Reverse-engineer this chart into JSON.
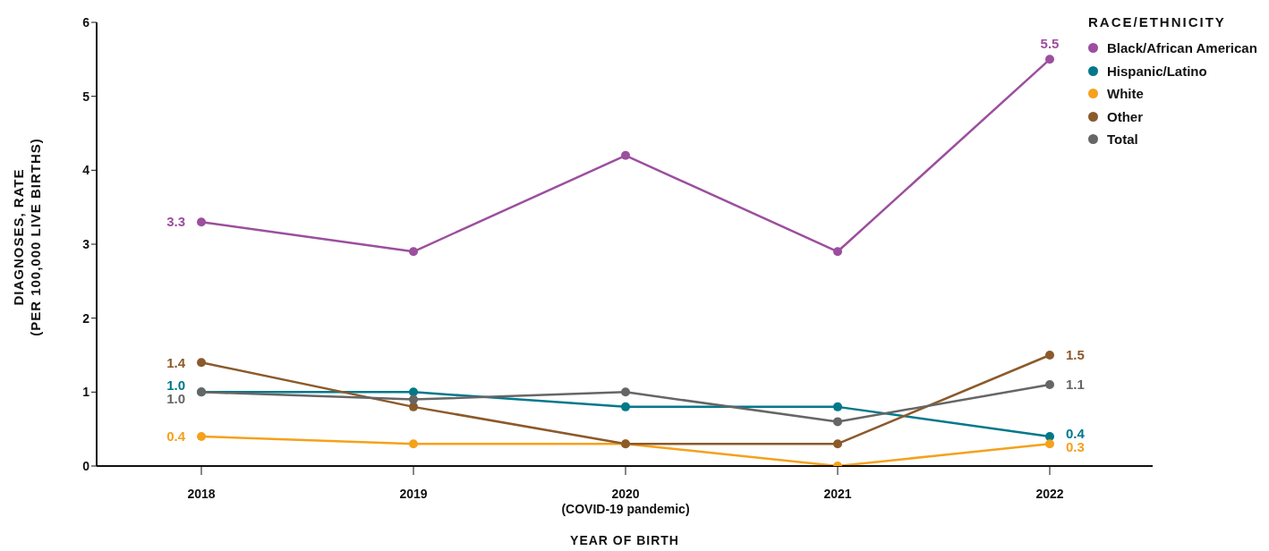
{
  "chart_data": {
    "type": "line",
    "xlabel": "YEAR OF BIRTH",
    "ylabel": "DIAGNOSES, RATE\n(PER 100,000 LIVE BIRTHS)",
    "legend_title": "RACE/ETHNICITY",
    "legend": "top right",
    "marker": "circle",
    "line_style": "solid",
    "grid": false,
    "categories": [
      "2018",
      "2019",
      "2020\n(COVID-19 pandemic)",
      "2021",
      "2022"
    ],
    "ylim": [
      0,
      6
    ],
    "yticks": [
      0,
      1,
      2,
      3,
      4,
      5,
      6
    ],
    "series": [
      {
        "name": "Black/African American",
        "color": "#9b4f9e",
        "values": [
          3.3,
          2.9,
          4.2,
          2.9,
          5.5
        ],
        "value_labels": [
          "3.3",
          null,
          null,
          null,
          "5.5"
        ]
      },
      {
        "name": "Hispanic/Latino",
        "color": "#00788a",
        "values": [
          1.0,
          1.0,
          0.8,
          0.8,
          0.4
        ],
        "value_labels": [
          "1.0",
          null,
          null,
          null,
          "0.4"
        ]
      },
      {
        "name": "White",
        "color": "#f5a11c",
        "values": [
          0.4,
          0.3,
          0.3,
          0.0,
          0.3
        ],
        "value_labels": [
          "0.4",
          null,
          null,
          null,
          "0.3"
        ]
      },
      {
        "name": "Other",
        "color": "#8b5a2b",
        "values": [
          1.4,
          0.8,
          0.3,
          0.3,
          1.5
        ],
        "value_labels": [
          "1.4",
          null,
          null,
          null,
          "1.5"
        ]
      },
      {
        "name": "Total",
        "color": "#666666",
        "values": [
          1.0,
          0.9,
          1.0,
          0.6,
          1.1
        ],
        "value_labels": [
          "1.0",
          null,
          null,
          null,
          "1.1"
        ]
      }
    ]
  }
}
